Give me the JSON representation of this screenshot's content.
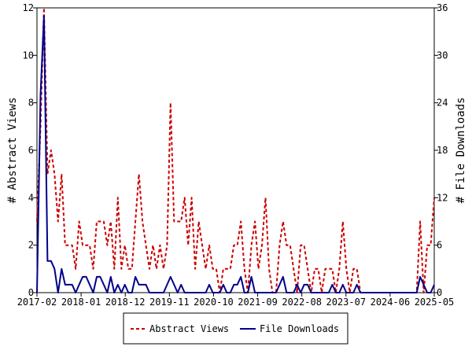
{
  "chart_data": {
    "type": "line",
    "x_tick_labels": [
      "2017-02",
      "2018-01",
      "2018-12",
      "2019-11",
      "2020-10",
      "2021-09",
      "2022-08",
      "2023-07",
      "2024-06",
      "2025-05"
    ],
    "y_left": {
      "label": "# Abstract Views",
      "ylim": [
        0,
        12
      ],
      "ticks": [
        0,
        2,
        4,
        6,
        8,
        10,
        12
      ]
    },
    "y_right": {
      "label": "# File Downloads",
      "ylim": [
        0,
        36
      ],
      "ticks": [
        0,
        6,
        12,
        18,
        24,
        30,
        36
      ]
    },
    "grid": false,
    "legend_position": "bottom",
    "series": [
      {
        "name": "Abstract Views",
        "axis": "left",
        "color": "#cc0000",
        "style": "dashed",
        "values": [
          3,
          7,
          12,
          5,
          6,
          5,
          3,
          5,
          2,
          2,
          2,
          1,
          3,
          2,
          2,
          2,
          1,
          3,
          3,
          3,
          2,
          3,
          1,
          4,
          1,
          2,
          1,
          1,
          3,
          5,
          3,
          2,
          1,
          2,
          1,
          2,
          1,
          2,
          8,
          3,
          3,
          3,
          4,
          2,
          4,
          1,
          3,
          2,
          1,
          2,
          1,
          1,
          0,
          1,
          1,
          1,
          2,
          2,
          3,
          1,
          0,
          2,
          3,
          1,
          2,
          4,
          1,
          0,
          0,
          2,
          3,
          2,
          2,
          1,
          0,
          2,
          2,
          1,
          0,
          1,
          1,
          0,
          1,
          1,
          1,
          0,
          1,
          3,
          1,
          0,
          1,
          1,
          0,
          0,
          0,
          0,
          0,
          0,
          0,
          0,
          0,
          0,
          0,
          0,
          0,
          0,
          0,
          0,
          0,
          3,
          0,
          2,
          2,
          4
        ]
      },
      {
        "name": "File Downloads",
        "axis": "right",
        "color": "#00008b",
        "style": "solid",
        "values": [
          0,
          25,
          35,
          4,
          4,
          3,
          0,
          3,
          1,
          1,
          1,
          0,
          1,
          2,
          2,
          1,
          0,
          2,
          2,
          1,
          0,
          2,
          0,
          1,
          0,
          1,
          0,
          0,
          2,
          1,
          1,
          1,
          0,
          0,
          0,
          0,
          0,
          1,
          2,
          1,
          0,
          1,
          0,
          0,
          0,
          0,
          0,
          0,
          0,
          1,
          0,
          0,
          0,
          1,
          0,
          0,
          1,
          1,
          2,
          0,
          0,
          2,
          0,
          0,
          0,
          0,
          0,
          0,
          0,
          1,
          2,
          0,
          0,
          0,
          1,
          0,
          1,
          1,
          0,
          0,
          0,
          0,
          0,
          0,
          1,
          0,
          0,
          1,
          0,
          0,
          0,
          1,
          0,
          0,
          0,
          0,
          0,
          0,
          0,
          0,
          0,
          0,
          0,
          0,
          0,
          0,
          0,
          0,
          0,
          2,
          1,
          0,
          0,
          1
        ]
      }
    ]
  }
}
